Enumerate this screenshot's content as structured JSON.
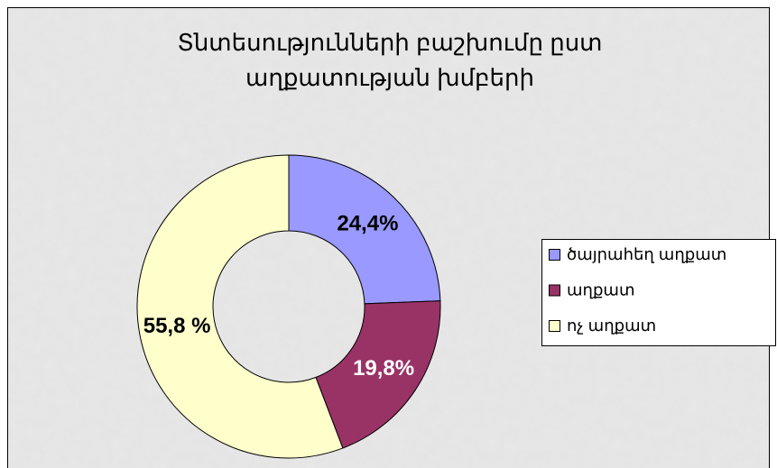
{
  "chart_data": {
    "type": "donut",
    "title": [
      "Տնտեսությունների բաշխումը ըստ",
      "աղքատության խմբերի"
    ],
    "categories": [
      "ծայրահեղ աղքատ",
      "աղքատ",
      "ոչ աղքատ"
    ],
    "values": [
      24.4,
      19.8,
      55.8
    ],
    "value_labels": [
      "24,4%",
      "19,8%",
      "55,8 %"
    ],
    "colors": [
      "#9999ff",
      "#993366",
      "#ffffcc"
    ],
    "label_colors": [
      "#000000",
      "#ffffff",
      "#000000"
    ],
    "legend": "right"
  }
}
